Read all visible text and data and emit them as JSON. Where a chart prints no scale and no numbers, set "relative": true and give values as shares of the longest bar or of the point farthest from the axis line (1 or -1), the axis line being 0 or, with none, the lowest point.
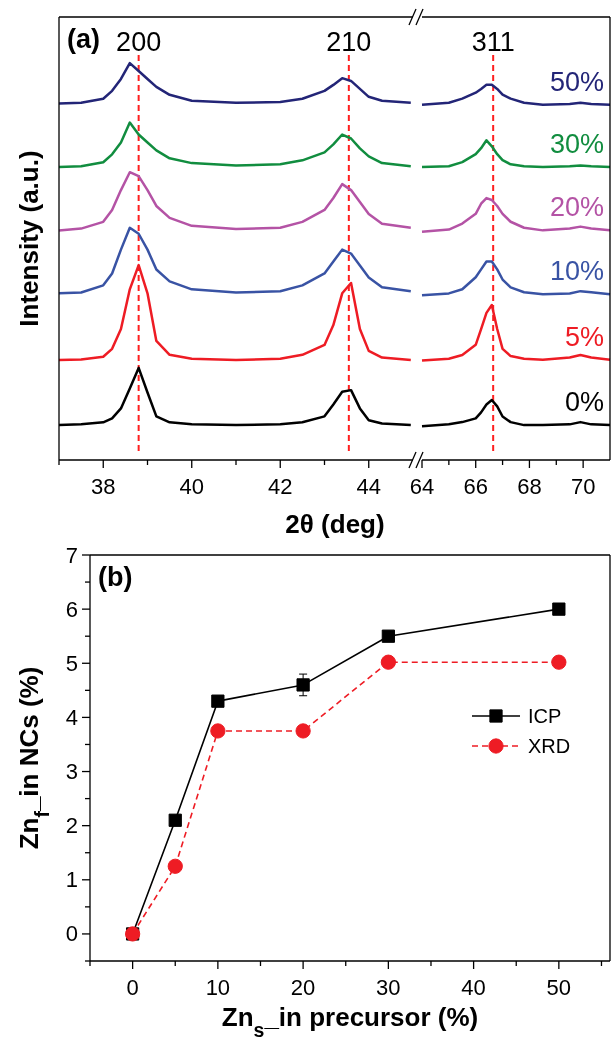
{
  "chart_data": [
    {
      "type": "line",
      "relative": true,
      "annotations": [
        "(a)",
        "200",
        "210"
      ],
      "ylabel": "Intensity (a.u.)",
      "xlabel": "2θ (deg)",
      "tick_labels": "x",
      "legend": false,
      "xlim": [
        37,
        45
      ],
      "xticks": [
        {
          "value": 37,
          "label": null
        },
        38,
        {
          "value": 39,
          "label": null
        },
        40,
        {
          "value": 41,
          "label": null
        },
        42,
        {
          "value": 43,
          "label": null
        },
        44
      ],
      "x": [
        37,
        37.5,
        38,
        38.2,
        38.4,
        38.6,
        38.8,
        39.0,
        39.2,
        39.5,
        40,
        41,
        42,
        42.5,
        43,
        43.2,
        43.4,
        43.6,
        43.8,
        44.0,
        44.3,
        44.95
      ],
      "ref_lines": [
        {
          "axis": "x",
          "value": 38.8,
          "color": "#ff2020",
          "line_style": "dashed"
        },
        {
          "axis": "x",
          "value": 43.55,
          "color": "#ff2020",
          "line_style": "dashed"
        }
      ],
      "series": [
        {
          "color": "#000000",
          "values": [
            0.088,
            0.09,
            0.095,
            0.105,
            0.13,
            0.18,
            0.232,
            0.17,
            0.11,
            0.095,
            0.09,
            0.088,
            0.09,
            0.095,
            0.11,
            0.14,
            0.172,
            0.176,
            0.13,
            0.1,
            0.092,
            0.088
          ]
        },
        {
          "color": "#ee1c24",
          "values": [
            0.252,
            0.253,
            0.26,
            0.28,
            0.33,
            0.43,
            0.491,
            0.42,
            0.3,
            0.265,
            0.255,
            0.252,
            0.255,
            0.265,
            0.29,
            0.34,
            0.42,
            0.446,
            0.33,
            0.275,
            0.258,
            0.252
          ]
        },
        {
          "color": "#3953a4",
          "values": [
            0.42,
            0.422,
            0.44,
            0.47,
            0.53,
            0.585,
            0.57,
            0.53,
            0.48,
            0.45,
            0.43,
            0.422,
            0.425,
            0.44,
            0.47,
            0.5,
            0.53,
            0.52,
            0.49,
            0.46,
            0.435,
            0.425
          ]
        },
        {
          "color": "#b453a5",
          "values": [
            0.578,
            0.583,
            0.6,
            0.63,
            0.68,
            0.725,
            0.715,
            0.68,
            0.64,
            0.61,
            0.59,
            0.582,
            0.585,
            0.6,
            0.63,
            0.66,
            0.695,
            0.68,
            0.65,
            0.62,
            0.595,
            0.585
          ]
        },
        {
          "color": "#118d3f",
          "values": [
            0.738,
            0.74,
            0.75,
            0.77,
            0.8,
            0.85,
            0.82,
            0.8,
            0.78,
            0.76,
            0.748,
            0.742,
            0.745,
            0.755,
            0.775,
            0.795,
            0.82,
            0.81,
            0.785,
            0.765,
            0.748,
            0.74
          ]
        },
        {
          "color": "#232577",
          "values": [
            0.898,
            0.9,
            0.91,
            0.93,
            0.96,
            1,
            0.98,
            0.96,
            0.94,
            0.92,
            0.905,
            0.9,
            0.902,
            0.91,
            0.93,
            0.945,
            0.962,
            0.955,
            0.935,
            0.915,
            0.905,
            0.9
          ]
        }
      ]
    },
    {
      "type": "line",
      "relative": true,
      "annotations": [
        "311"
      ],
      "tick_labels": "x",
      "legend": false,
      "xlim": [
        64,
        71
      ],
      "xticks": [
        64,
        {
          "value": 65,
          "label": null
        },
        66,
        {
          "value": 67,
          "label": null
        },
        68,
        {
          "value": 69,
          "label": null
        },
        70
      ],
      "x": [
        64,
        65,
        65.5,
        66,
        66.2,
        66.4,
        66.6,
        66.8,
        67.0,
        67.3,
        67.8,
        68.5,
        69.5,
        69.9,
        70.3,
        71
      ],
      "ref_lines": [
        {
          "axis": "x",
          "value": 66.65,
          "color": "#ff2020",
          "line_style": "dashed"
        }
      ],
      "series": [
        {
          "name": "0%",
          "color": "#000000",
          "values": [
            0.09,
            0.095,
            0.101,
            0.111,
            0.127,
            0.148,
            0.16,
            0.143,
            0.116,
            0.101,
            0.093,
            0.093,
            0.095,
            0.101,
            0.095,
            0.093
          ]
        },
        {
          "name": "5%",
          "color": "#ee1c24",
          "values": [
            0.265,
            0.27,
            0.28,
            0.307,
            0.349,
            0.392,
            0.413,
            0.349,
            0.296,
            0.277,
            0.27,
            0.267,
            0.273,
            0.28,
            0.273,
            0.267
          ]
        },
        {
          "name": "10%",
          "color": "#3953a4",
          "values": [
            0.439,
            0.444,
            0.455,
            0.487,
            0.508,
            0.529,
            0.529,
            0.508,
            0.481,
            0.46,
            0.447,
            0.442,
            0.444,
            0.45,
            0.447,
            0.442
          ]
        },
        {
          "name": "20%",
          "color": "#b453a5",
          "values": [
            0.608,
            0.614,
            0.63,
            0.656,
            0.683,
            0.698,
            0.693,
            0.677,
            0.656,
            0.635,
            0.619,
            0.612,
            0.617,
            0.622,
            0.617,
            0.612
          ]
        },
        {
          "name": "30%",
          "color": "#118d3f",
          "values": [
            0.781,
            0.783,
            0.794,
            0.815,
            0.831,
            0.852,
            0.836,
            0.815,
            0.799,
            0.788,
            0.783,
            0.781,
            0.783,
            0.785,
            0.783,
            0.781
          ]
        },
        {
          "name": "50%",
          "color": "#232577",
          "values": [
            0.947,
            0.952,
            0.963,
            0.979,
            0.989,
            1,
            1,
            0.989,
            0.974,
            0.963,
            0.952,
            0.947,
            0.949,
            0.952,
            0.949,
            0.947
          ]
        }
      ]
    },
    {
      "type": "line",
      "annotations": [
        "(b)"
      ],
      "xlabel": "Zn$_{s}$_in precursor (%)",
      "ylabel": "Zn$_{f}$_in NCs (%)",
      "legend": "right",
      "xlim": [
        -5,
        56
      ],
      "xticks": [
        {
          "value": -5,
          "label": null
        },
        0,
        {
          "value": 5,
          "label": null
        },
        10,
        {
          "value": 15,
          "label": null
        },
        20,
        {
          "value": 25,
          "label": null
        },
        30,
        {
          "value": 35,
          "label": null
        },
        40,
        {
          "value": 45,
          "label": null
        },
        50,
        {
          "value": 55,
          "label": null
        }
      ],
      "ylim": [
        -0.5,
        7
      ],
      "yticks": [
        {
          "value": -0.5,
          "label": null
        },
        0,
        {
          "value": 0.5,
          "label": null
        },
        1,
        {
          "value": 1.5,
          "label": null
        },
        2,
        {
          "value": 2.5,
          "label": null
        },
        3,
        {
          "value": 3.5,
          "label": null
        },
        4,
        {
          "value": 4.5,
          "label": null
        },
        5,
        {
          "value": 5.5,
          "label": null
        },
        6,
        {
          "value": 6.5,
          "label": null
        },
        7
      ],
      "x": [
        0,
        5,
        10,
        20,
        30,
        50
      ],
      "series": [
        {
          "name": "ICP",
          "color": "#000000",
          "marker": "square",
          "line_style": "solid",
          "values": [
            0,
            2.1,
            4.3,
            4.6,
            5.5,
            6.0
          ],
          "errors": [
            null,
            null,
            null,
            0.2,
            null,
            null
          ]
        },
        {
          "name": "XRD",
          "color": "#ee1c24",
          "marker": "circle",
          "line_style": "dashed",
          "values": [
            0,
            1.25,
            3.75,
            3.75,
            5.02,
            5.02
          ]
        }
      ]
    }
  ]
}
